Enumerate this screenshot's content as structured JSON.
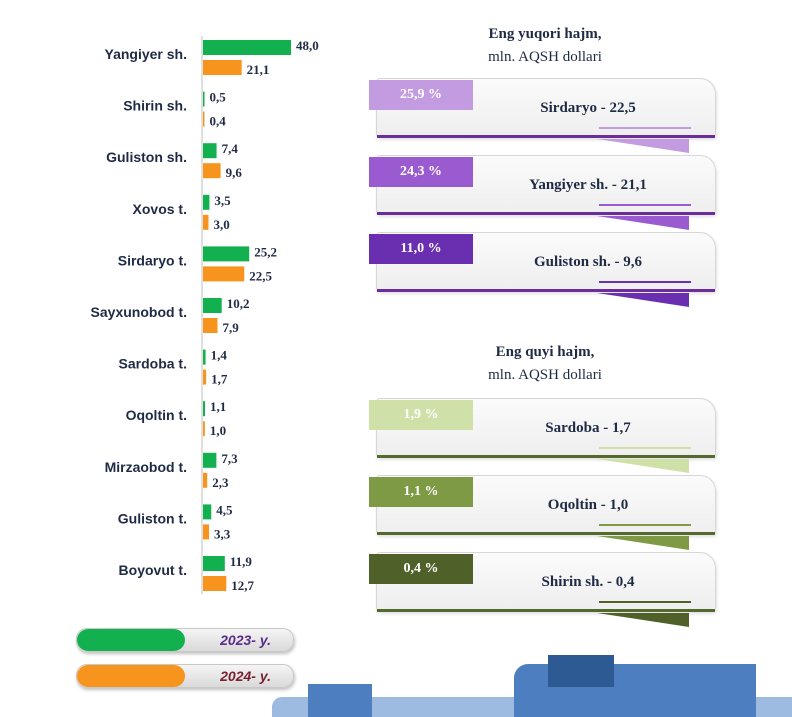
{
  "chart_data": {
    "type": "bar",
    "orientation": "horizontal",
    "categories": [
      "Yangiyer sh.",
      "Shirin sh.",
      "Guliston sh.",
      "Xovos t.",
      "Sirdaryo t.",
      "Sayxunobod t.",
      "Sardoba t.",
      "Oqoltin t.",
      "Mirzaobod t.",
      "Guliston t.",
      "Boyovut t."
    ],
    "series": [
      {
        "name": "2023- y.",
        "color": "#12b04e",
        "values": [
          48.0,
          0.5,
          7.4,
          3.5,
          25.2,
          10.2,
          1.4,
          1.1,
          7.3,
          4.5,
          11.9
        ],
        "labels": [
          "48,0",
          "0,5",
          "7,4",
          "3,5",
          "25,2",
          "10,2",
          "1,4",
          "1,1",
          "7,3",
          "4,5",
          "11,9"
        ]
      },
      {
        "name": "2024- y.",
        "color": "#f7941d",
        "values": [
          21.1,
          0.4,
          9.6,
          3.0,
          22.5,
          7.9,
          1.7,
          1.0,
          2.3,
          3.3,
          12.7
        ],
        "labels": [
          "21,1",
          "0,4",
          "9,6",
          "3,0",
          "22,5",
          "7,9",
          "1,7",
          "1,0",
          "2,3",
          "3,3",
          "12,7"
        ]
      }
    ],
    "title": "",
    "xlabel": "",
    "ylabel": "",
    "xlim": [
      0,
      48
    ],
    "grid": false
  },
  "legend": {
    "items": [
      {
        "label": "2023- y.",
        "color": "#12b04e",
        "text_color": "#5b2d8a"
      },
      {
        "label": "2024- y.",
        "color": "#f7941d",
        "text_color": "#7a1f2b"
      }
    ]
  },
  "top": {
    "title": "Eng yuqori hajm,",
    "unit": "mln. AQSH dollari",
    "cards": [
      {
        "percent": "25,9 %",
        "text": "Sirdaryo - 22,5",
        "color": "#c39be0",
        "line_color": "#6a2d9a"
      },
      {
        "percent": "24,3 %",
        "text": "Yangiyer sh. - 21,1",
        "color": "#9a5bd1",
        "line_color": "#6a2d9a"
      },
      {
        "percent": "11,0 %",
        "text": "Guliston sh.  - 9,6",
        "color": "#6a2fb0",
        "line_color": "#6a2d9a"
      }
    ]
  },
  "bottom": {
    "title": "Eng quyi hajm,",
    "unit": "mln. AQSH dollari",
    "cards": [
      {
        "percent": "1,9 %",
        "text": "Sardoba -  1,7",
        "color": "#cfe0a8",
        "line_color": "#55692e"
      },
      {
        "percent": "1,1 %",
        "text": "Oqoltin - 1,0",
        "color": "#7e9a45",
        "line_color": "#55692e"
      },
      {
        "percent": "0,4 %",
        "text": "Shirin sh. - 0,4",
        "color": "#4f6128",
        "line_color": "#55692e"
      }
    ]
  }
}
